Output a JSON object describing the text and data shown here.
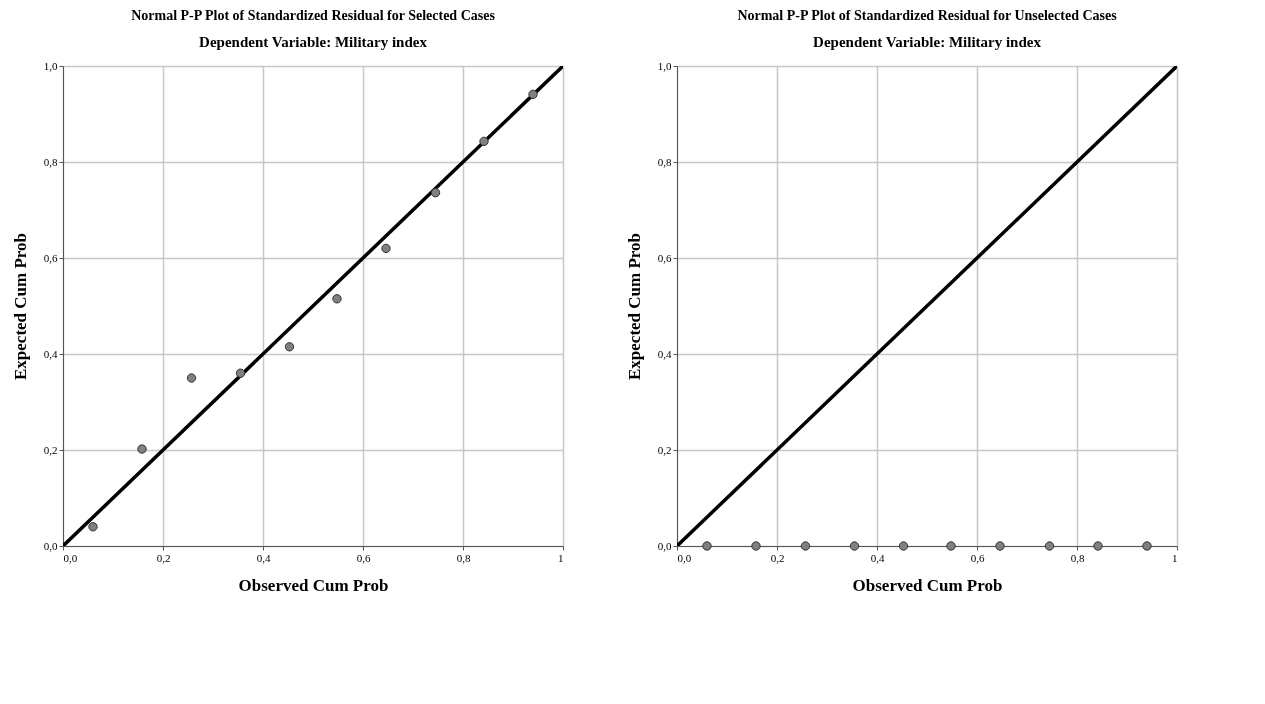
{
  "chart_data": [
    {
      "type": "scatter",
      "title": "Normal P-P Plot of Standardized Residual for Selected Cases",
      "subtitle": "Dependent Variable: Military index",
      "xlabel": "Observed Cum Prob",
      "ylabel": "Expected Cum Prob",
      "series": [
        {
          "type": "line",
          "marker": "none",
          "color": "#000000",
          "x": [
            0,
            1
          ],
          "values": [
            0,
            1
          ]
        },
        {
          "color": "#808080",
          "x": [
            0.06,
            0.158,
            0.257,
            0.355,
            0.453,
            0.548,
            0.646,
            0.745,
            0.842,
            0.94
          ],
          "values": [
            0.04,
            0.202,
            0.35,
            0.36,
            0.415,
            0.515,
            0.62,
            0.736,
            0.843,
            0.941
          ]
        }
      ],
      "xlim": [
        0,
        1
      ],
      "ylim": [
        0,
        1
      ],
      "xticks": [
        {
          "value": 0,
          "label": "0,0"
        },
        {
          "value": 0.2,
          "label": "0,2"
        },
        {
          "value": 0.4,
          "label": "0,4"
        },
        {
          "value": 0.6,
          "label": "0,6"
        },
        {
          "value": 0.8,
          "label": "0,8"
        },
        1
      ],
      "yticks": [
        {
          "value": 0,
          "label": "0,0"
        },
        {
          "value": 0.2,
          "label": "0,2"
        },
        {
          "value": 0.4,
          "label": "0,4"
        },
        {
          "value": 0.6,
          "label": "0,6"
        },
        {
          "value": 0.8,
          "label": "0,8"
        },
        {
          "value": 1,
          "label": "1,0"
        }
      ],
      "grid": true,
      "marker": "circle"
    },
    {
      "type": "scatter",
      "title": "Normal P-P Plot of Standardized Residual for Unselected Cases",
      "subtitle": "Dependent Variable: Military index",
      "xlabel": "Observed Cum Prob",
      "ylabel": "Expected Cum Prob",
      "series": [
        {
          "type": "line",
          "marker": "none",
          "color": "#000000",
          "x": [
            0,
            1
          ],
          "values": [
            0,
            1
          ]
        },
        {
          "color": "#808080",
          "x": [
            0.06,
            0.158,
            0.257,
            0.355,
            0.453,
            0.548,
            0.646,
            0.745,
            0.842,
            0.94
          ],
          "values": [
            0,
            0,
            0,
            0,
            0,
            0,
            0,
            0,
            0,
            0
          ]
        }
      ],
      "xlim": [
        0,
        1
      ],
      "ylim": [
        0,
        1
      ],
      "xticks": [
        {
          "value": 0,
          "label": "0,0"
        },
        {
          "value": 0.2,
          "label": "0,2"
        },
        {
          "value": 0.4,
          "label": "0,4"
        },
        {
          "value": 0.6,
          "label": "0,6"
        },
        {
          "value": 0.8,
          "label": "0,8"
        },
        1
      ],
      "yticks": [
        {
          "value": 0,
          "label": "0,0"
        },
        {
          "value": 0.2,
          "label": "0,2"
        },
        {
          "value": 0.4,
          "label": "0,4"
        },
        {
          "value": 0.6,
          "label": "0,6"
        },
        {
          "value": 0.8,
          "label": "0,8"
        },
        {
          "value": 1,
          "label": "1,0"
        }
      ],
      "grid": true,
      "marker": "circle"
    }
  ]
}
